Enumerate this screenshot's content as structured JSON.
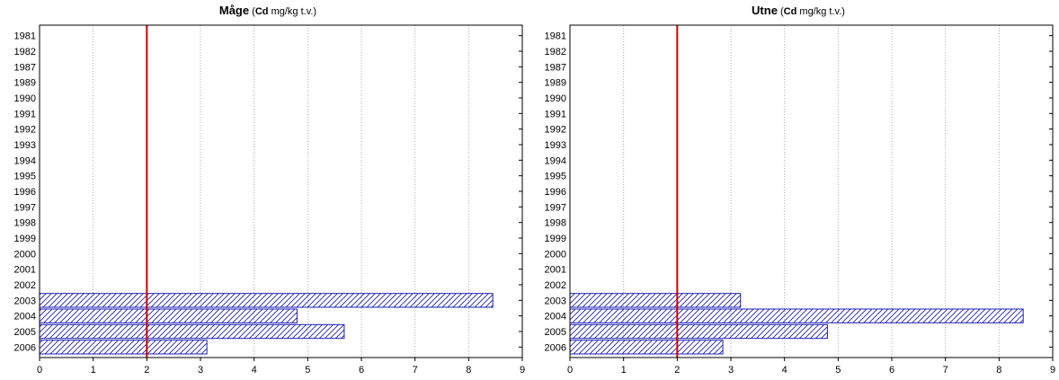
{
  "colors": {
    "bar_stroke": "#1f1fb4",
    "bar_hatch": "#1f1fb4",
    "ref_line": "#d40000",
    "grid": "#9a9a9a",
    "frame": "#000000"
  },
  "chart_data": [
    {
      "type": "bar",
      "orientation": "horizontal",
      "title": {
        "name": "Måge",
        "open": " (",
        "element": "Cd",
        "unit": " mg/kg t.v.)"
      },
      "categories": [
        "1981",
        "1982",
        "1987",
        "1989",
        "1990",
        "1991",
        "1992",
        "1993",
        "1994",
        "1995",
        "1996",
        "1997",
        "1998",
        "1999",
        "2000",
        "2001",
        "2002",
        "2003",
        "2004",
        "2005",
        "2006"
      ],
      "values": [
        null,
        null,
        null,
        null,
        null,
        null,
        null,
        null,
        null,
        null,
        null,
        null,
        null,
        null,
        null,
        null,
        null,
        8.45,
        4.8,
        5.68,
        3.12
      ],
      "xlim": [
        0,
        9
      ],
      "xticks": [
        0,
        1,
        2,
        3,
        4,
        5,
        6,
        7,
        8,
        9
      ],
      "reference_line": 2,
      "grid": "vertical-dotted"
    },
    {
      "type": "bar",
      "orientation": "horizontal",
      "title": {
        "name": "Utne",
        "open": " (",
        "element": "Cd",
        "unit": " mg/kg t.v.)"
      },
      "categories": [
        "1981",
        "1982",
        "1987",
        "1989",
        "1990",
        "1991",
        "1992",
        "1993",
        "1994",
        "1995",
        "1996",
        "1997",
        "1998",
        "1999",
        "2000",
        "2001",
        "2002",
        "2003",
        "2004",
        "2005",
        "2006"
      ],
      "values": [
        null,
        null,
        null,
        null,
        null,
        null,
        null,
        null,
        null,
        null,
        null,
        null,
        null,
        null,
        null,
        null,
        null,
        3.18,
        8.45,
        4.8,
        2.85
      ],
      "xlim": [
        0,
        9
      ],
      "xticks": [
        0,
        1,
        2,
        3,
        4,
        5,
        6,
        7,
        8,
        9
      ],
      "reference_line": 2,
      "grid": "vertical-dotted"
    }
  ]
}
